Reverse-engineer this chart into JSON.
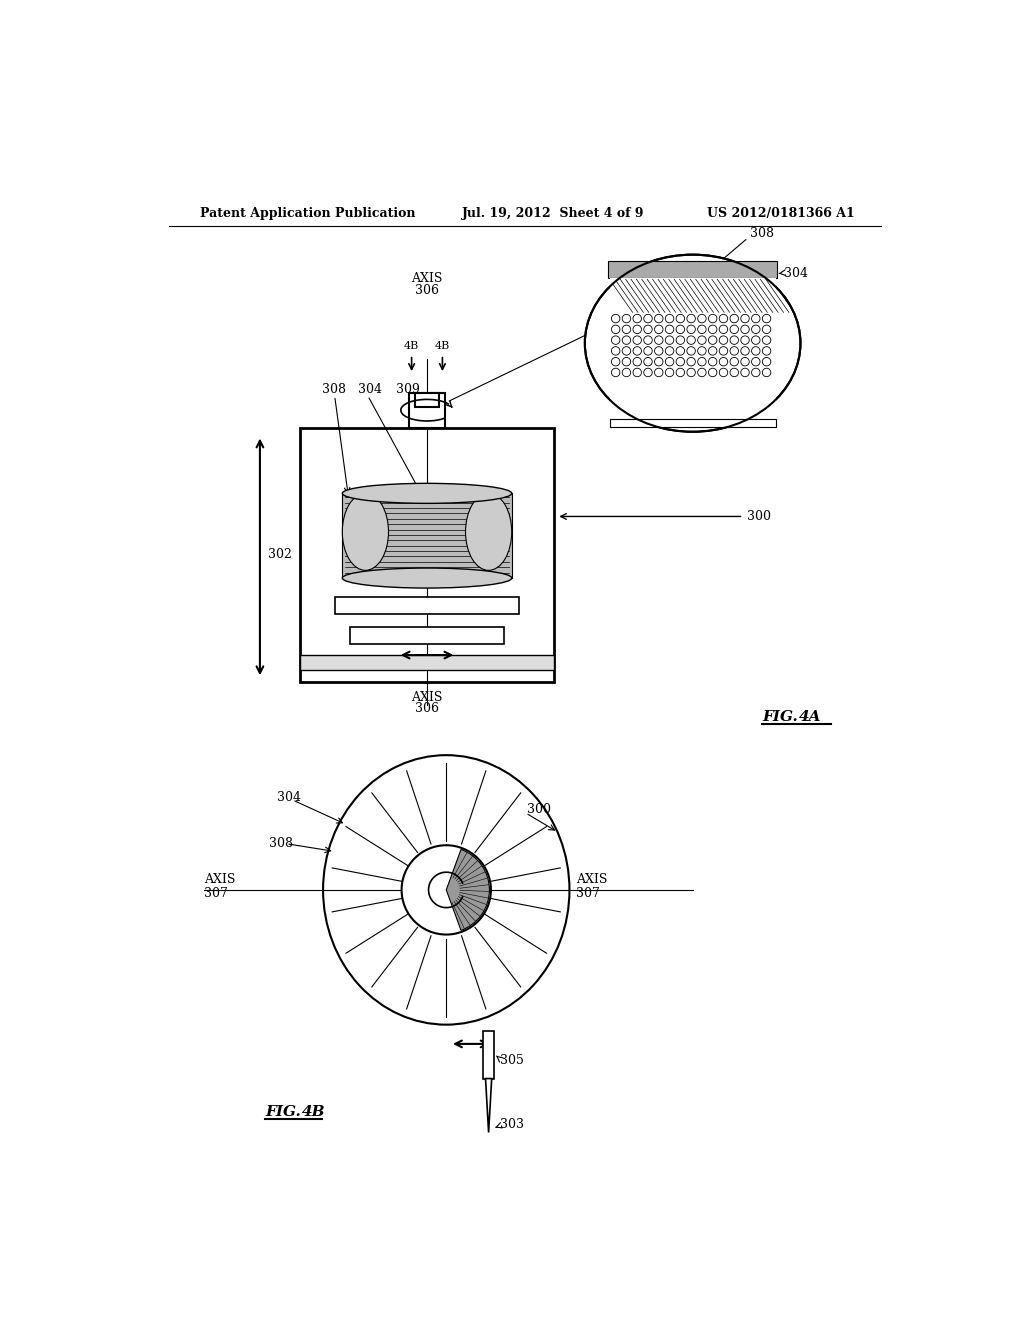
{
  "bg_color": "#ffffff",
  "header_left": "Patent Application Publication",
  "header_center": "Jul. 19, 2012  Sheet 4 of 9",
  "header_right": "US 2012/0181366 A1"
}
